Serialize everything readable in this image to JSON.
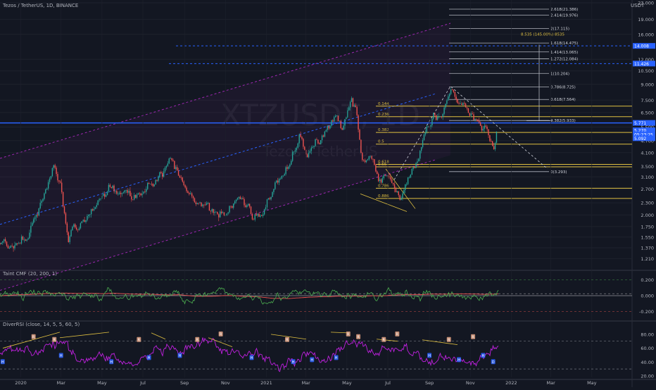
{
  "header": {
    "symbol_line": "Tezos / TetherUS, 1D, BINANCE",
    "currency": "USDT",
    "watermark": "XTZUSDT, 1D",
    "watermark_sub": "Tezos / TetherUS"
  },
  "indicators": {
    "cmf_title": "Taint CMF (20, 200, 1)",
    "rsi_title": "DiverRSI (close, 14, 5, 5, 60, 5)"
  },
  "colors": {
    "background": "#131722",
    "up": "#26a69a",
    "down": "#ef5350",
    "channel": "#9c27b0",
    "fib": "#e0c040",
    "fib_ext": "#b2b5be",
    "level_blue": "#2962ff",
    "cmf": "#4caf50",
    "cmf_signal": "#ef5350",
    "rsi": "#c020e0",
    "divergence": "#e0c040"
  },
  "chart_data": [
    {
      "type": "candlestick",
      "scale": "log",
      "ylim": [
        1.11,
        23.0
      ],
      "y_ticks": [
        "23.000",
        "19.000",
        "16.000",
        "12.000",
        "10.500",
        "9.000",
        "7.500",
        "6.500",
        "5.500",
        "4.700",
        "4.100",
        "3.500",
        "3.100",
        "2.700",
        "2.300",
        "2.000",
        "1.750",
        "1.550",
        "1.370",
        "1.210"
      ],
      "x_ticks": [
        "2020",
        "Mar",
        "May",
        "Jul",
        "Sep",
        "Nov",
        "2021",
        "Mar",
        "May",
        "Jul",
        "Sep",
        "Nov",
        "2022",
        "Mar",
        "May"
      ],
      "x_range": [
        "2019-12-01",
        "2022-06-30"
      ],
      "price_labels": [
        {
          "value": "14.008",
          "color": "#2962ff"
        },
        {
          "value": "11.426",
          "color": "#2962ff"
        },
        {
          "value": "5.771",
          "color": "#2962ff"
        },
        {
          "value": "5.270",
          "color": "#2962ff"
        },
        {
          "value": "05:23:25",
          "color": "#2962ff"
        },
        {
          "value": "5.092",
          "color": "#2962ff"
        }
      ],
      "fib_retracement": [
        {
          "label": "0.144",
          "value": 7.0
        },
        {
          "label": "0.236",
          "value": 6.2
        },
        {
          "label": "0.382",
          "value": 5.17
        },
        {
          "label": "0.5",
          "value": 4.52
        },
        {
          "label": "0.618",
          "value": 3.58
        },
        {
          "label": "0.65",
          "value": 3.48
        },
        {
          "label": "0.786",
          "value": 2.72
        },
        {
          "label": "0.886",
          "value": 2.42
        }
      ],
      "fib_extension": [
        {
          "label": "2.618(21.386)"
        },
        {
          "label": "2.414(19.976)"
        },
        {
          "label": "2(17.115)"
        },
        {
          "label": "1.618(14.475)"
        },
        {
          "label": "1.414(13.065)"
        },
        {
          "label": "1.272(12.084)"
        },
        {
          "label": "1(10.204)"
        },
        {
          "label": "0.786(8.725)"
        },
        {
          "label": "0.618(7.564)"
        },
        {
          "label": "0.382(5.933)"
        },
        {
          "label": "0(3.293)"
        }
      ],
      "target_label": "8.535 (145.00%) 8535",
      "price_path": [
        [
          "2019-12-01",
          1.45
        ],
        [
          "2019-12-20",
          1.35
        ],
        [
          "2020-01-10",
          1.55
        ],
        [
          "2020-01-25",
          2.0
        ],
        [
          "2020-02-10",
          2.8
        ],
        [
          "2020-02-18",
          3.6
        ],
        [
          "2020-03-01",
          2.7
        ],
        [
          "2020-03-12",
          1.4
        ],
        [
          "2020-03-20",
          1.75
        ],
        [
          "2020-04-05",
          1.8
        ],
        [
          "2020-04-25",
          2.3
        ],
        [
          "2020-05-10",
          2.7
        ],
        [
          "2020-05-25",
          2.6
        ],
        [
          "2020-06-15",
          2.5
        ],
        [
          "2020-07-05",
          2.7
        ],
        [
          "2020-07-25",
          3.1
        ],
        [
          "2020-08-12",
          3.8
        ],
        [
          "2020-08-25",
          3.0
        ],
        [
          "2020-09-05",
          2.6
        ],
        [
          "2020-09-20",
          2.3
        ],
        [
          "2020-10-05",
          2.2
        ],
        [
          "2020-10-20",
          2.1
        ],
        [
          "2020-11-05",
          2.05
        ],
        [
          "2020-11-20",
          2.4
        ],
        [
          "2020-12-01",
          2.2
        ],
        [
          "2020-12-12",
          1.9
        ],
        [
          "2020-12-25",
          2.0
        ],
        [
          "2021-01-05",
          2.5
        ],
        [
          "2021-01-20",
          3.0
        ],
        [
          "2021-02-05",
          3.6
        ],
        [
          "2021-02-20",
          5.2
        ],
        [
          "2021-03-01",
          4.0
        ],
        [
          "2021-03-15",
          4.6
        ],
        [
          "2021-04-01",
          5.4
        ],
        [
          "2021-04-15",
          6.7
        ],
        [
          "2021-04-25",
          5.3
        ],
        [
          "2021-05-07",
          7.4
        ],
        [
          "2021-05-15",
          6.5
        ],
        [
          "2021-05-23",
          3.6
        ],
        [
          "2021-06-05",
          4.1
        ],
        [
          "2021-06-20",
          3.0
        ],
        [
          "2021-07-01",
          3.2
        ],
        [
          "2021-07-20",
          2.5
        ],
        [
          "2021-08-01",
          3.1
        ],
        [
          "2021-08-15",
          3.8
        ],
        [
          "2021-08-25",
          5.1
        ],
        [
          "2021-09-05",
          6.2
        ],
        [
          "2021-09-20",
          6.3
        ],
        [
          "2021-10-03",
          8.6
        ],
        [
          "2021-10-15",
          7.2
        ],
        [
          "2021-10-25",
          6.7
        ],
        [
          "2021-11-05",
          6.3
        ],
        [
          "2021-11-15",
          5.6
        ],
        [
          "2021-11-25",
          5.3
        ],
        [
          "2021-12-05",
          4.2
        ],
        [
          "2021-12-10",
          5.1
        ]
      ]
    },
    {
      "type": "line",
      "title": "Taint CMF (20, 200, 1)",
      "ylim": [
        -0.25,
        0.25
      ],
      "y_ticks": [
        "0.200",
        "0.000",
        "-0.200"
      ],
      "bands": [
        0.2,
        0.025,
        0.0,
        -0.2
      ]
    },
    {
      "type": "line",
      "title": "DiverRSI (close, 14, 5, 5, 60, 5)",
      "ylim": [
        18,
        92
      ],
      "y_ticks": [
        "80.00",
        "60.00",
        "40.00",
        "20.00"
      ],
      "bands": [
        70,
        30
      ],
      "markers": [
        {
          "date": "2019-12-05",
          "text": "H"
        },
        {
          "date": "2020-01-20",
          "text": "R"
        },
        {
          "date": "2020-02-20",
          "text": "R"
        },
        {
          "date": "2020-03-01",
          "text": "H"
        },
        {
          "date": "2020-05-15",
          "text": "H"
        },
        {
          "date": "2020-06-25",
          "text": "R"
        },
        {
          "date": "2020-07-10",
          "text": "H"
        },
        {
          "date": "2020-08-25",
          "text": "H"
        },
        {
          "date": "2020-09-20",
          "text": "R"
        },
        {
          "date": "2020-10-25",
          "text": "R"
        },
        {
          "date": "2020-12-10",
          "text": "H"
        },
        {
          "date": "2021-02-01",
          "text": "R"
        },
        {
          "date": "2021-02-10",
          "text": "H"
        },
        {
          "date": "2021-03-10",
          "text": "H"
        },
        {
          "date": "2021-04-15",
          "text": "H"
        },
        {
          "date": "2021-05-03",
          "text": "R"
        },
        {
          "date": "2021-05-18",
          "text": "R"
        },
        {
          "date": "2021-06-25",
          "text": "R"
        },
        {
          "date": "2021-07-15",
          "text": "R"
        },
        {
          "date": "2021-09-01",
          "text": "H"
        },
        {
          "date": "2021-09-30",
          "text": "R"
        },
        {
          "date": "2021-10-15",
          "text": "H"
        },
        {
          "date": "2021-11-05",
          "text": "R"
        },
        {
          "date": "2021-11-20",
          "text": "H"
        },
        {
          "date": "2021-12-05",
          "text": "D"
        }
      ]
    }
  ]
}
